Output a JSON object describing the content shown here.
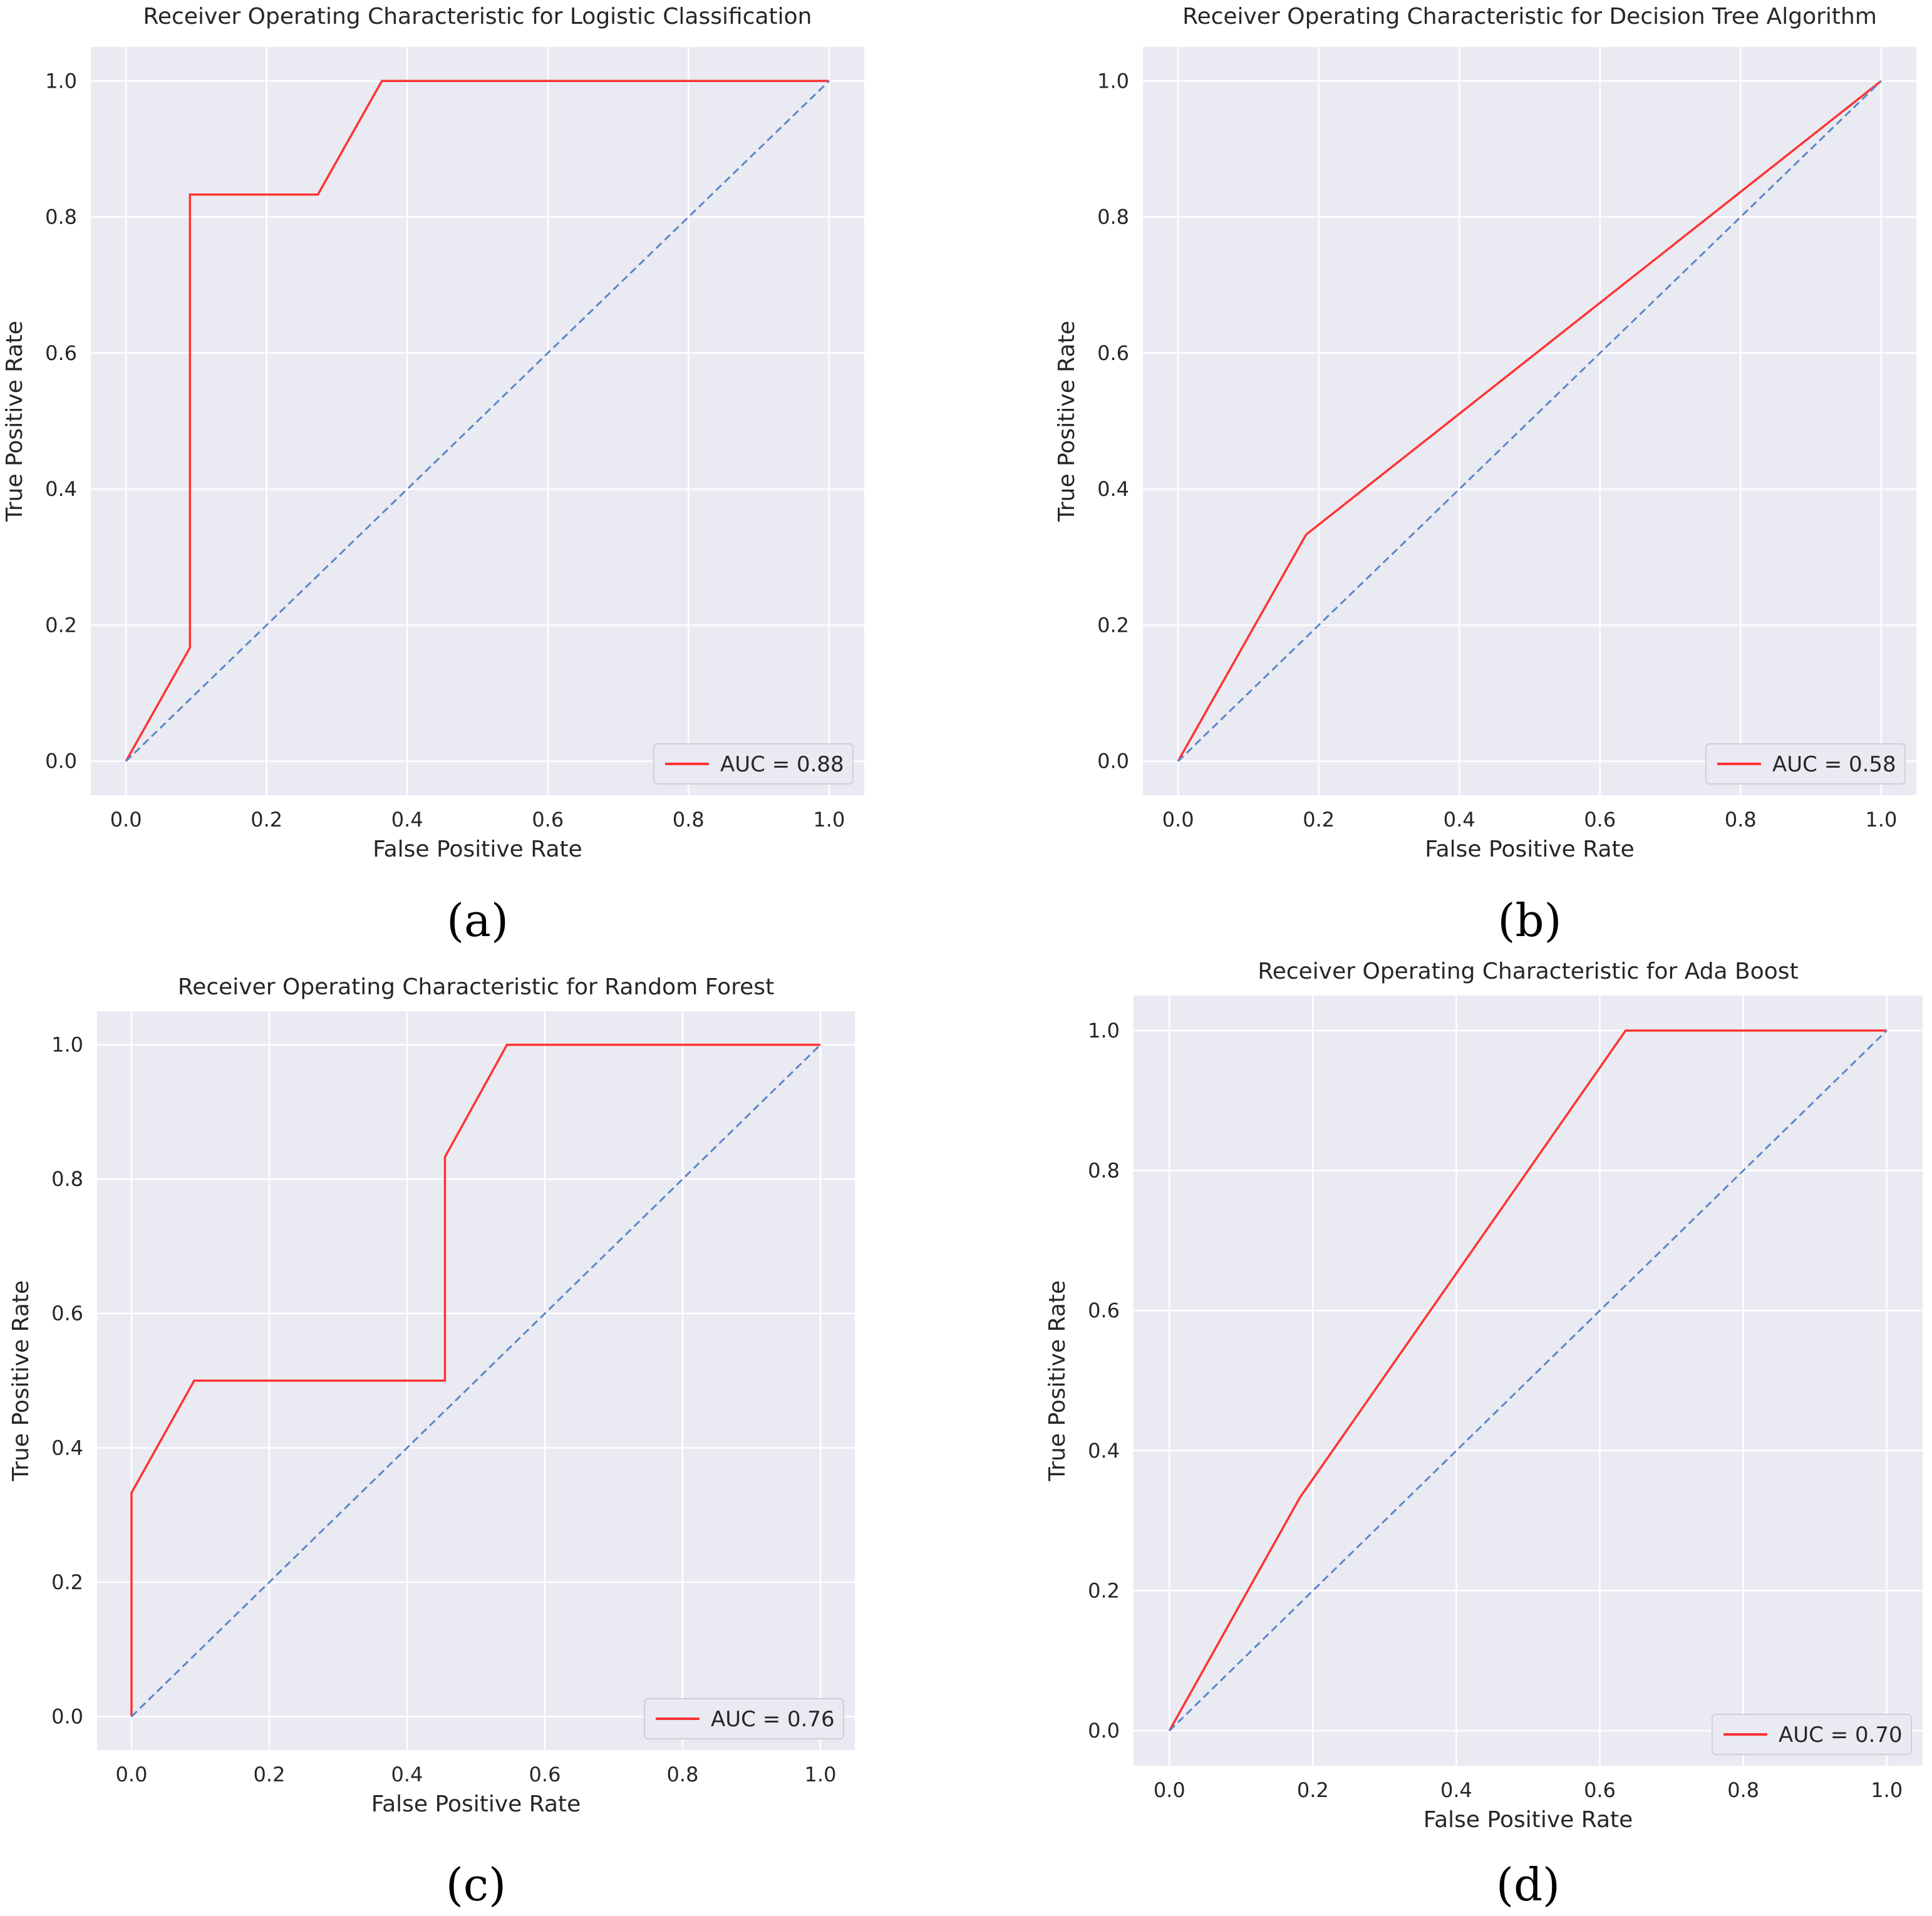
{
  "chart_data": [
    {
      "type": "line",
      "panel_label": "(a)",
      "title": "Receiver Operating Characteristic for Logistic Classification",
      "xlabel": "False Positive Rate",
      "ylabel": "True Positive Rate",
      "xlim": [
        -0.05,
        1.05
      ],
      "ylim": [
        -0.05,
        1.05
      ],
      "xticks": [
        "0.0",
        "0.2",
        "0.4",
        "0.6",
        "0.8",
        "1.0"
      ],
      "yticks": [
        "0.0",
        "0.2",
        "0.4",
        "0.6",
        "0.8",
        "1.0"
      ],
      "grid": true,
      "legend_position": "lower-right",
      "series": [
        {
          "name": "AUC = 0.88",
          "color": "#ff3333",
          "style": "solid",
          "x": [
            0.0,
            0.091,
            0.091,
            0.273,
            0.364,
            1.0
          ],
          "y": [
            0.0,
            0.167,
            0.833,
            0.833,
            1.0,
            1.0
          ]
        },
        {
          "color": "#5b87c7",
          "style": "dashed",
          "x": [
            0,
            1
          ],
          "y": [
            0,
            1
          ]
        }
      ]
    },
    {
      "type": "line",
      "panel_label": "(b)",
      "title": "Receiver Operating Characteristic for Decision Tree Algorithm",
      "xlabel": "False Positive Rate",
      "ylabel": "True Positive Rate",
      "xlim": [
        -0.05,
        1.05
      ],
      "ylim": [
        -0.05,
        1.05
      ],
      "xticks": [
        "0.0",
        "0.2",
        "0.4",
        "0.6",
        "0.8",
        "1.0"
      ],
      "yticks": [
        "0.0",
        "0.2",
        "0.4",
        "0.6",
        "0.8",
        "1.0"
      ],
      "grid": true,
      "legend_position": "lower-right",
      "series": [
        {
          "name": "AUC = 0.58",
          "color": "#ff3333",
          "style": "solid",
          "x": [
            0.0,
            0.182,
            1.0
          ],
          "y": [
            0.0,
            0.333,
            1.0
          ]
        },
        {
          "color": "#5b87c7",
          "style": "dashed",
          "x": [
            0,
            1
          ],
          "y": [
            0,
            1
          ]
        }
      ]
    },
    {
      "type": "line",
      "panel_label": "(c)",
      "title": "Receiver Operating Characteristic for Random Forest",
      "xlabel": "False Positive Rate",
      "ylabel": "True Positive Rate",
      "xlim": [
        -0.05,
        1.05
      ],
      "ylim": [
        -0.05,
        1.05
      ],
      "xticks": [
        "0.0",
        "0.2",
        "0.4",
        "0.6",
        "0.8",
        "1.0"
      ],
      "yticks": [
        "0.0",
        "0.2",
        "0.4",
        "0.6",
        "0.8",
        "1.0"
      ],
      "grid": true,
      "legend_position": "lower-right",
      "series": [
        {
          "name": "AUC = 0.76",
          "color": "#ff3333",
          "style": "solid",
          "x": [
            0.0,
            0.0,
            0.091,
            0.455,
            0.455,
            0.545,
            1.0
          ],
          "y": [
            0.0,
            0.333,
            0.5,
            0.5,
            0.833,
            1.0,
            1.0
          ]
        },
        {
          "color": "#5b87c7",
          "style": "dashed",
          "x": [
            0,
            1
          ],
          "y": [
            0,
            1
          ]
        }
      ]
    },
    {
      "type": "line",
      "panel_label": "(d)",
      "title": "Receiver Operating Characteristic for Ada Boost",
      "xlabel": "False Positive Rate",
      "ylabel": "True Positive Rate",
      "xlim": [
        -0.05,
        1.05
      ],
      "ylim": [
        -0.05,
        1.05
      ],
      "xticks": [
        "0.0",
        "0.2",
        "0.4",
        "0.6",
        "0.8",
        "1.0"
      ],
      "yticks": [
        "0.0",
        "0.2",
        "0.4",
        "0.6",
        "0.8",
        "1.0"
      ],
      "grid": true,
      "legend_position": "lower-right",
      "series": [
        {
          "name": "AUC = 0.70",
          "color": "#ff3333",
          "style": "solid",
          "x": [
            0.0,
            0.182,
            0.636,
            1.0
          ],
          "y": [
            0.0,
            0.333,
            1.0,
            1.0
          ]
        },
        {
          "color": "#5b87c7",
          "style": "dashed",
          "x": [
            0,
            1
          ],
          "y": [
            0,
            1
          ]
        }
      ]
    }
  ]
}
